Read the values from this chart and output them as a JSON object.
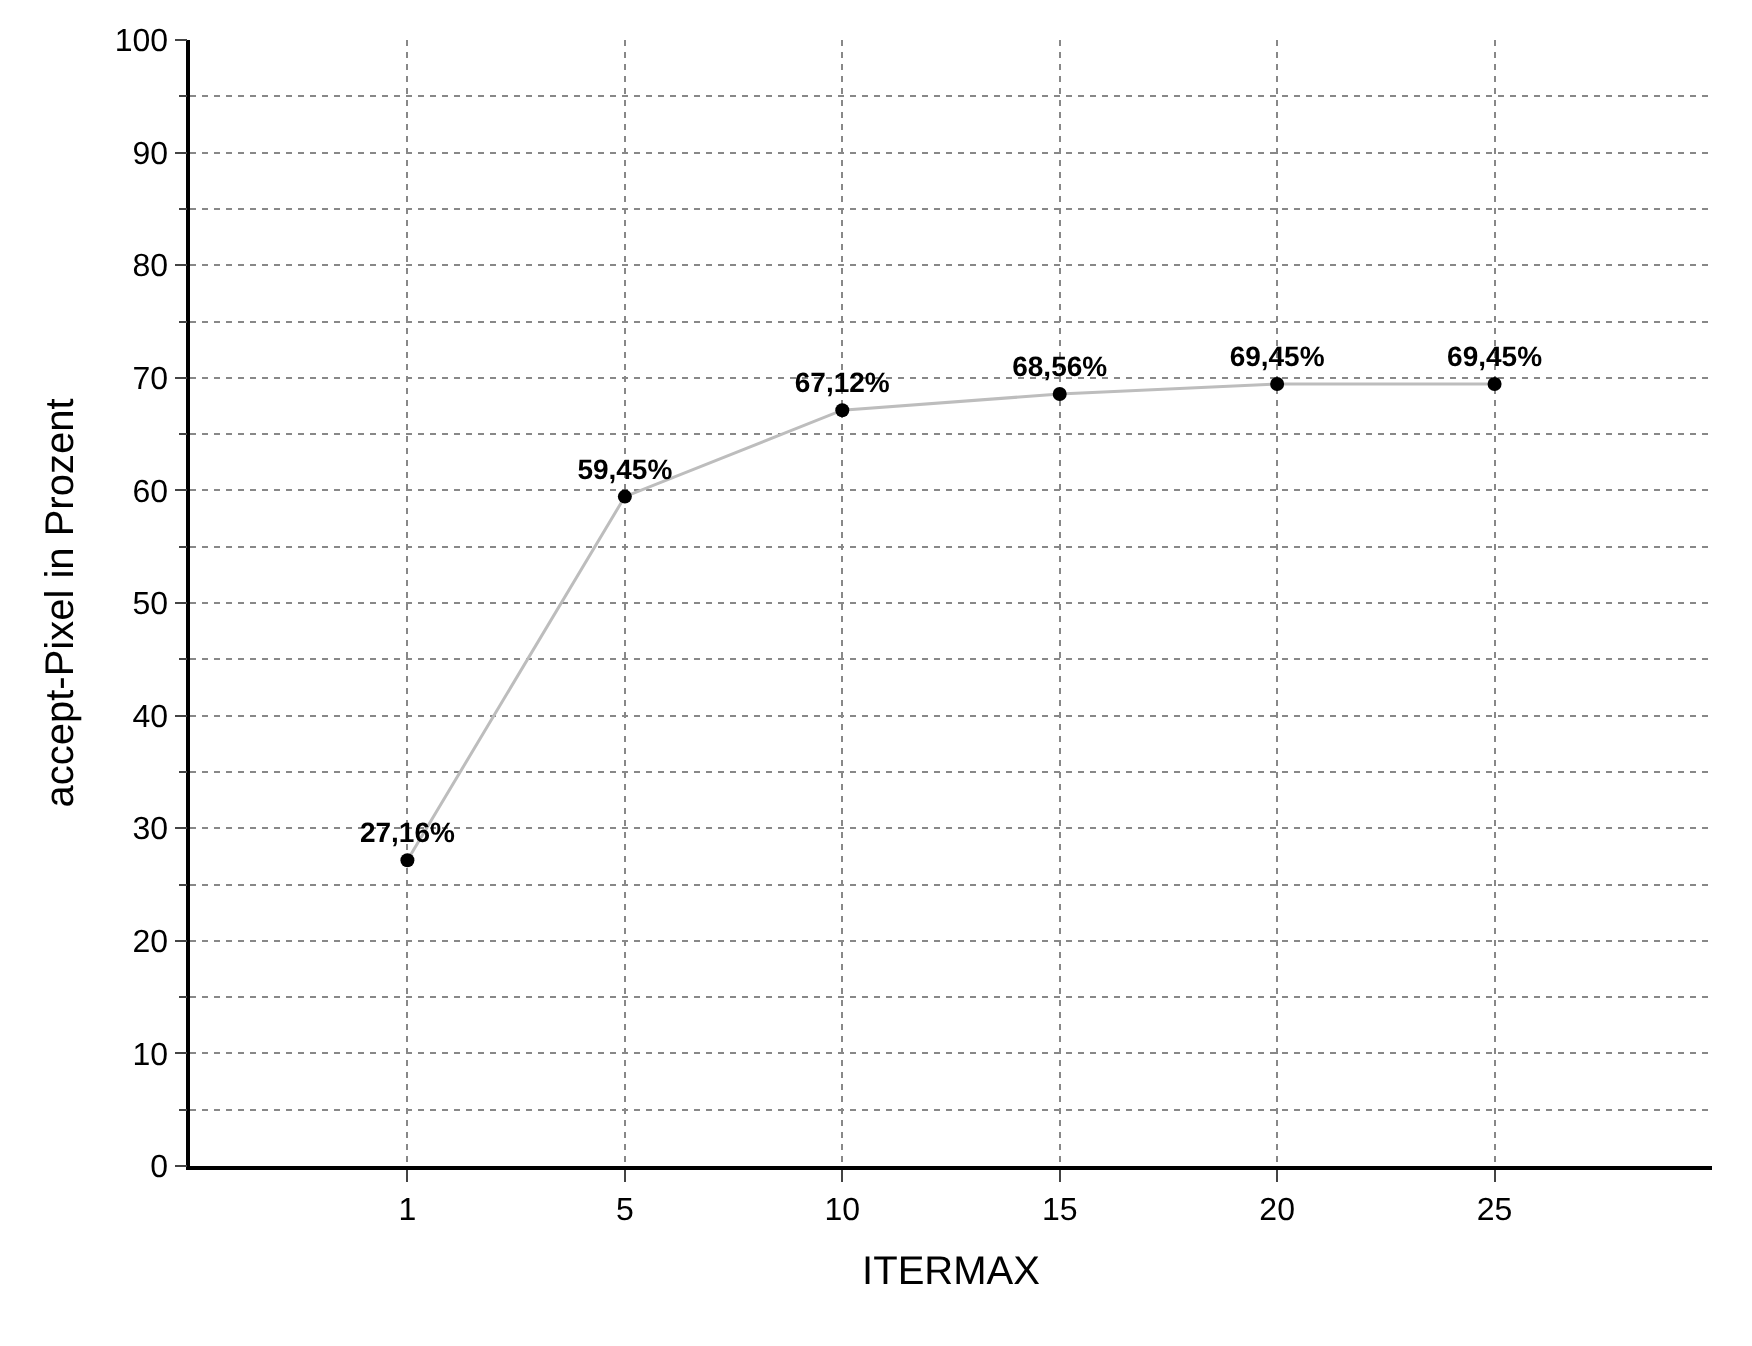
{
  "chart_data": {
    "type": "line",
    "xlabel": "ITERMAX",
    "ylabel": "accept-Pixel in Prozent",
    "categories": [
      "1",
      "5",
      "10",
      "15",
      "20",
      "25"
    ],
    "series": [
      {
        "color": "#bdbdbd",
        "values": [
          27.16,
          59.45,
          67.12,
          68.56,
          69.45,
          69.45
        ],
        "value_labels": [
          "27,16%",
          "59,45%",
          "67,12%",
          "68,56%",
          "69,45%",
          "69,45%"
        ]
      }
    ],
    "ylim": [
      0,
      100
    ],
    "yticks": [
      0,
      10,
      20,
      30,
      40,
      50,
      60,
      70,
      80,
      90,
      100
    ],
    "grid": true,
    "marker": "circle",
    "line_style": "solid"
  }
}
